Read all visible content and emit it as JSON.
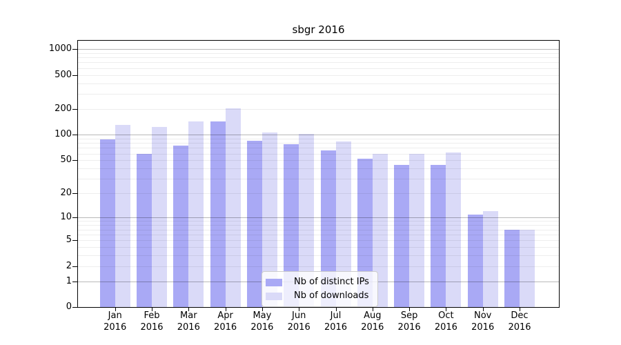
{
  "title": "sbgr 2016",
  "legend": {
    "items": [
      {
        "label": "Nb of distinct IPs"
      },
      {
        "label": "Nb of downloads"
      }
    ]
  },
  "chart_data": {
    "type": "bar",
    "title": "sbgr 2016",
    "yscale": "log10(1+x)",
    "grid": true,
    "legend_position": "lower center",
    "year": "2016",
    "months": [
      "Jan",
      "Feb",
      "Mar",
      "Apr",
      "May",
      "Jun",
      "Jul",
      "Aug",
      "Sep",
      "Oct",
      "Nov",
      "Dec"
    ],
    "categories": [
      "Jan 2016",
      "Feb 2016",
      "Mar 2016",
      "Apr 2016",
      "May 2016",
      "Jun 2016",
      "Jul 2016",
      "Aug 2016",
      "Sep 2016",
      "Oct 2016",
      "Nov 2016",
      "Dec 2016"
    ],
    "series": [
      {
        "name": "Nb of distinct IPs",
        "color": "#a9a9f5",
        "values": [
          89,
          59,
          74,
          143,
          85,
          77,
          66,
          52,
          44,
          44,
          11,
          7
        ]
      },
      {
        "name": "Nb of downloads",
        "color": "#dadaf8",
        "values": [
          130,
          124,
          142,
          205,
          107,
          102,
          84,
          60,
          60,
          62,
          12,
          7
        ]
      }
    ],
    "y_ticks": [
      0,
      1,
      2,
      5,
      10,
      20,
      50,
      100,
      200,
      500,
      1000
    ],
    "ylim": [
      0,
      1250
    ],
    "xlabel": "",
    "ylabel": "",
    "colors": {
      "grid_major": "#b4b4b4",
      "grid_minor": "#ececec",
      "axis": "#000000",
      "legend_border": "#cccccc"
    }
  }
}
